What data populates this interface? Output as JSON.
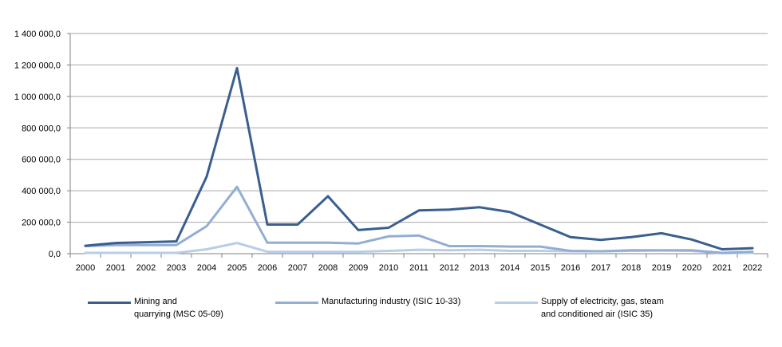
{
  "chart_data": {
    "type": "line",
    "title": "",
    "xlabel": "",
    "ylabel": "",
    "ylim": [
      0,
      1400000
    ],
    "y_ticks": [
      "0,0",
      "200 000,0",
      "400 000,0",
      "600 000,0",
      "800 000,0",
      "1 000 000,0",
      "1 200 000,0",
      "1 400 000,0"
    ],
    "grid": "horizontal",
    "legend_position": "bottom",
    "categories": [
      "2000",
      "2001",
      "2002",
      "2003",
      "2004",
      "2005",
      "2006",
      "2007",
      "2008",
      "2009",
      "2010",
      "2011",
      "2012",
      "2013",
      "2014",
      "2015",
      "2016",
      "2017",
      "2018",
      "2019",
      "2020",
      "2021",
      "2022"
    ],
    "series": [
      {
        "name_lines": [
          "Mining and",
          "quarrying (MSC 05-09)"
        ],
        "color": "#3a5f8f",
        "values": [
          50000,
          68000,
          73000,
          78000,
          490000,
          1180000,
          185000,
          185000,
          365000,
          150000,
          165000,
          275000,
          280000,
          295000,
          265000,
          185000,
          105000,
          88000,
          105000,
          130000,
          90000,
          28000,
          35000
        ]
      },
      {
        "name_lines": [
          "Manufacturing industry (ISIC 10-33)"
        ],
        "color": "#93aed2",
        "values": [
          48000,
          55000,
          55000,
          55000,
          175000,
          425000,
          70000,
          70000,
          70000,
          65000,
          110000,
          115000,
          48000,
          48000,
          45000,
          45000,
          18000,
          15000,
          22000,
          22000,
          22000,
          5000,
          12000
        ]
      },
      {
        "name_lines": [
          "Supply of electricity, gas, steam",
          "and conditioned air (ISIC 35)"
        ],
        "color": "#b9cde6",
        "values": [
          5000,
          5000,
          5000,
          5000,
          28000,
          68000,
          12000,
          12000,
          12000,
          12000,
          18000,
          25000,
          22000,
          25000,
          18000,
          18000,
          15000,
          15000,
          18000,
          20000,
          18000,
          3000,
          5000
        ]
      }
    ]
  }
}
